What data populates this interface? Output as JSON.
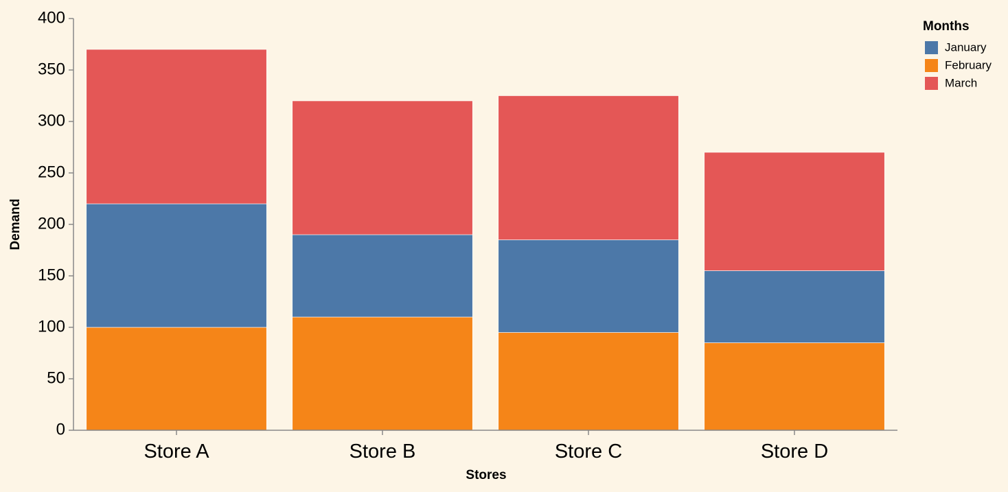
{
  "chart_data": {
    "type": "bar",
    "stacked": true,
    "categories": [
      "Store A",
      "Store B",
      "Store C",
      "Store D"
    ],
    "series": [
      {
        "name": "February",
        "color": "#f58518",
        "values": [
          100,
          110,
          95,
          85
        ]
      },
      {
        "name": "January",
        "color": "#4c78a8",
        "values": [
          120,
          80,
          90,
          70
        ]
      },
      {
        "name": "March",
        "color": "#e45756",
        "values": [
          150,
          130,
          140,
          115
        ]
      }
    ],
    "xlabel": "Stores",
    "ylabel": "Demand",
    "ylim": [
      0,
      400
    ],
    "yticks": [
      0,
      50,
      100,
      150,
      200,
      250,
      300,
      350,
      400
    ],
    "grid": false,
    "legend": {
      "title": "Months",
      "placement": "top-right",
      "entries": [
        {
          "label": "January",
          "color": "#4c78a8"
        },
        {
          "label": "February",
          "color": "#f58518"
        },
        {
          "label": "March",
          "color": "#e45756"
        }
      ]
    }
  },
  "colors": {
    "background": "#fdf5e6",
    "axis": "#888888"
  }
}
